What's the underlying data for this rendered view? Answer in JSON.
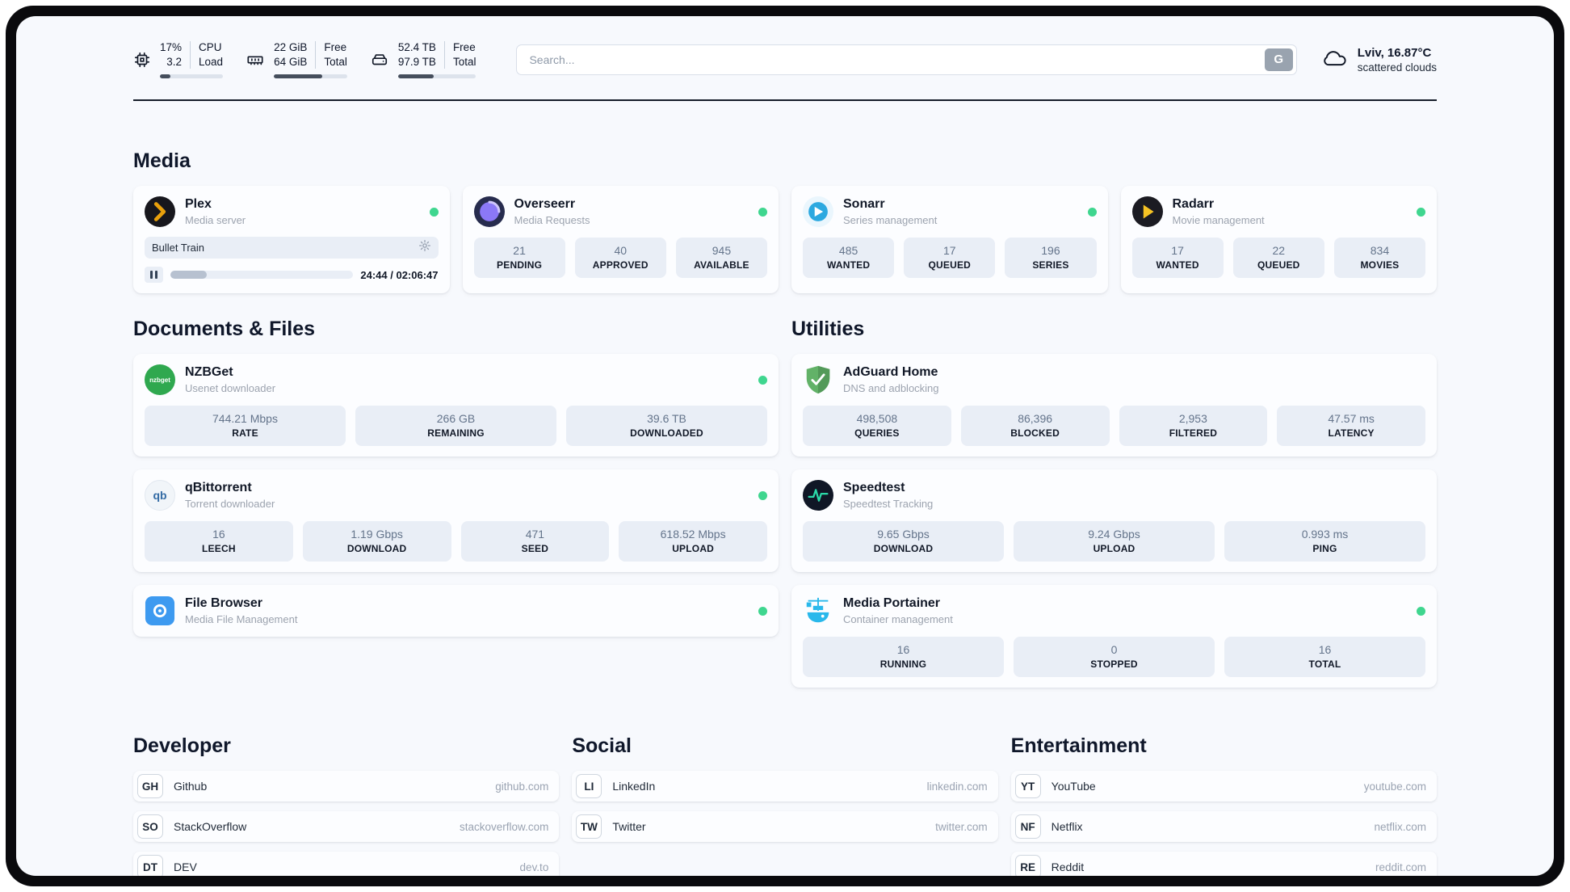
{
  "header": {
    "cpu": {
      "value_top": "17%",
      "value_bottom": "3.2",
      "label_top": "CPU",
      "label_bottom": "Load",
      "progress_pct": 17
    },
    "ram": {
      "value_top": "22 GiB",
      "value_bottom": "64 GiB",
      "label_top": "Free",
      "label_bottom": "Total",
      "progress_pct": 66
    },
    "disk": {
      "value_top": "52.4 TB",
      "value_bottom": "97.9 TB",
      "label_top": "Free",
      "label_bottom": "Total",
      "progress_pct": 46
    },
    "search": {
      "placeholder": "Search...",
      "button_label": "G"
    },
    "weather": {
      "title": "Lviv, 16.87°C",
      "subtitle": "scattered clouds"
    }
  },
  "sections": {
    "media": {
      "title": "Media",
      "plex": {
        "name": "Plex",
        "subtitle": "Media server",
        "now_playing": "Bullet Train",
        "time": "24:44 / 02:06:47",
        "progress_pct": 20
      },
      "overseerr": {
        "name": "Overseerr",
        "subtitle": "Media Requests",
        "stats": [
          {
            "value": "21",
            "label": "PENDING"
          },
          {
            "value": "40",
            "label": "APPROVED"
          },
          {
            "value": "945",
            "label": "AVAILABLE"
          }
        ]
      },
      "sonarr": {
        "name": "Sonarr",
        "subtitle": "Series management",
        "stats": [
          {
            "value": "485",
            "label": "WANTED"
          },
          {
            "value": "17",
            "label": "QUEUED"
          },
          {
            "value": "196",
            "label": "SERIES"
          }
        ]
      },
      "radarr": {
        "name": "Radarr",
        "subtitle": "Movie management",
        "stats": [
          {
            "value": "17",
            "label": "WANTED"
          },
          {
            "value": "22",
            "label": "QUEUED"
          },
          {
            "value": "834",
            "label": "MOVIES"
          }
        ]
      }
    },
    "documents": {
      "title": "Documents & Files",
      "nzbget": {
        "name": "NZBGet",
        "subtitle": "Usenet downloader",
        "icon_text": "nzbget",
        "stats": [
          {
            "value": "744.21 Mbps",
            "label": "RATE"
          },
          {
            "value": "266 GB",
            "label": "REMAINING"
          },
          {
            "value": "39.6 TB",
            "label": "DOWNLOADED"
          }
        ]
      },
      "qbittorrent": {
        "name": "qBittorrent",
        "subtitle": "Torrent downloader",
        "icon_text": "qb",
        "stats": [
          {
            "value": "16",
            "label": "LEECH"
          },
          {
            "value": "1.19 Gbps",
            "label": "DOWNLOAD"
          },
          {
            "value": "471",
            "label": "SEED"
          },
          {
            "value": "618.52 Mbps",
            "label": "UPLOAD"
          }
        ]
      },
      "filebrowser": {
        "name": "File Browser",
        "subtitle": "Media File Management"
      }
    },
    "utilities": {
      "title": "Utilities",
      "adguard": {
        "name": "AdGuard Home",
        "subtitle": "DNS and adblocking",
        "stats": [
          {
            "value": "498,508",
            "label": "QUERIES"
          },
          {
            "value": "86,396",
            "label": "BLOCKED"
          },
          {
            "value": "2,953",
            "label": "FILTERED"
          },
          {
            "value": "47.57 ms",
            "label": "LATENCY"
          }
        ]
      },
      "speedtest": {
        "name": "Speedtest",
        "subtitle": "Speedtest Tracking",
        "stats": [
          {
            "value": "9.65 Gbps",
            "label": "DOWNLOAD"
          },
          {
            "value": "9.24 Gbps",
            "label": "UPLOAD"
          },
          {
            "value": "0.993 ms",
            "label": "PING"
          }
        ]
      },
      "portainer": {
        "name": "Media Portainer",
        "subtitle": "Container management",
        "stats": [
          {
            "value": "16",
            "label": "RUNNING"
          },
          {
            "value": "0",
            "label": "STOPPED"
          },
          {
            "value": "16",
            "label": "TOTAL"
          }
        ]
      }
    },
    "developer": {
      "title": "Developer",
      "links": [
        {
          "badge": "GH",
          "name": "Github",
          "url": "github.com"
        },
        {
          "badge": "SO",
          "name": "StackOverflow",
          "url": "stackoverflow.com"
        },
        {
          "badge": "DT",
          "name": "DEV",
          "url": "dev.to"
        }
      ]
    },
    "social": {
      "title": "Social",
      "links": [
        {
          "badge": "LI",
          "name": "LinkedIn",
          "url": "linkedin.com"
        },
        {
          "badge": "TW",
          "name": "Twitter",
          "url": "twitter.com"
        }
      ]
    },
    "entertainment": {
      "title": "Entertainment",
      "links": [
        {
          "badge": "YT",
          "name": "YouTube",
          "url": "youtube.com"
        },
        {
          "badge": "NF",
          "name": "Netflix",
          "url": "netflix.com"
        },
        {
          "badge": "RE",
          "name": "Reddit",
          "url": "reddit.com"
        }
      ]
    }
  },
  "colors": {
    "status_green": "#3fd68f",
    "plex_gold": "#e8a00c",
    "radarr_gold": "#f6c324",
    "adguard_green": "#62b268",
    "speedtest_pulse": "#2bd9a8",
    "portainer_blue": "#29b8eb",
    "stat_box_bg": "#e9eef6",
    "page_bg": "#f7f9fd"
  }
}
